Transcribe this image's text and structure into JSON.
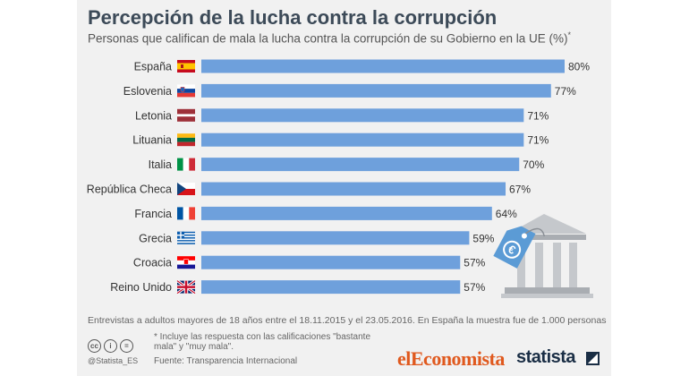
{
  "header": {
    "title": "Percepción de la lucha contra la corrupción",
    "subtitle": "Personas que califican de mala la lucha contra la corrupción de su Gobierno en la UE (%)",
    "subtitle_mark": "*"
  },
  "chart_data": {
    "type": "bar",
    "orientation": "horizontal",
    "categories": [
      "España",
      "Eslovenia",
      "Letonia",
      "Lituania",
      "Italia",
      "República Checa",
      "Francia",
      "Grecia",
      "Croacia",
      "Reino Unido"
    ],
    "values": [
      80,
      77,
      71,
      71,
      70,
      67,
      64,
      59,
      57,
      57
    ],
    "value_labels": [
      "80%",
      "77%",
      "71%",
      "71%",
      "70%",
      "67%",
      "64%",
      "59%",
      "57%",
      "57%"
    ],
    "xlim": [
      0,
      80
    ],
    "bar_color": "#6ea0dc",
    "grid": false,
    "legend": "none",
    "flags": [
      "spain-flag",
      "slovenia-flag",
      "latvia-flag",
      "lithuania-flag",
      "italy-flag",
      "czech-flag",
      "france-flag",
      "greece-flag",
      "croatia-flag",
      "uk-flag"
    ]
  },
  "illustration": {
    "icon": "bank-building-with-euro-tag-icon",
    "tag_symbol": "€"
  },
  "footer": {
    "note": "Entrevistas a adultos mayores de 18 años entre el 18.11.2015 y el 23.05.2016. En España la muestra fue de 1.000 personas",
    "footnote": "* Incluye las respuesta con las calificaciones \"bastante mala\" y \"muy mala\".",
    "source": "Fuente: Transparencia Internacional",
    "handle": "@Statista_ES",
    "cc_icons": [
      "cc",
      "i",
      "="
    ],
    "brand_1": "elEconomista",
    "brand_2": "statista"
  }
}
